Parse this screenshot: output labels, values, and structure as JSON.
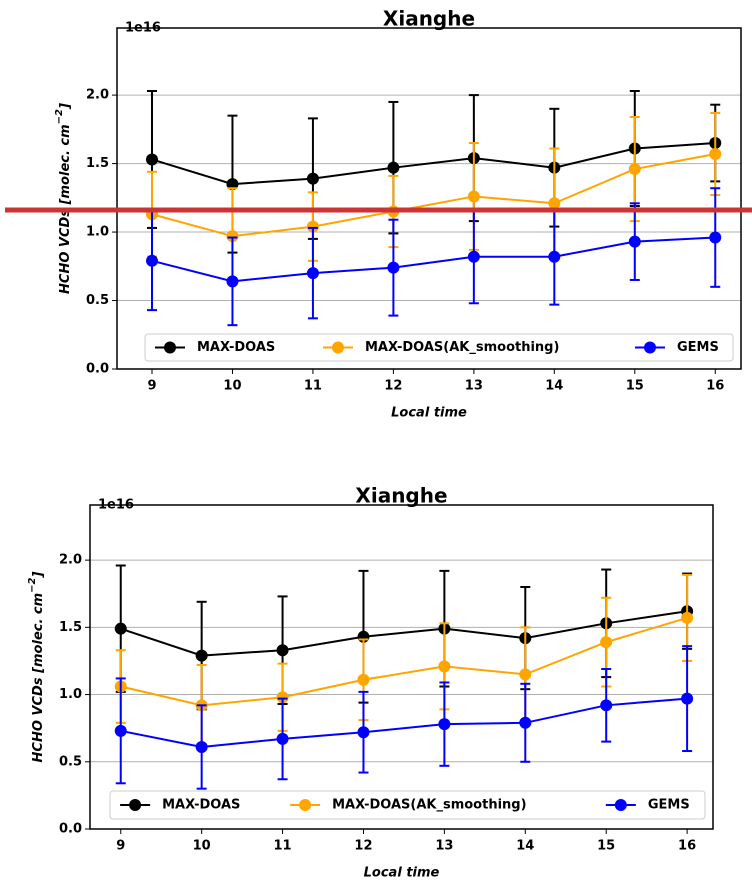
{
  "chart_data": [
    {
      "type": "line",
      "title": "Xianghe",
      "offset_text": "1e16",
      "xlabel": "Local time",
      "ylabel": {
        "text": "HCHO VCDs [molec. cm",
        "superscript": "−2",
        "after": "]"
      },
      "x": [
        9,
        10,
        11,
        12,
        13,
        14,
        15,
        16
      ],
      "xlim": [
        8.565,
        16.32
      ],
      "xticks": [
        9,
        10,
        11,
        12,
        13,
        14,
        15,
        16
      ],
      "ylim": [
        0,
        2.49
      ],
      "yticks": [
        {
          "value": 0,
          "label": "0.0"
        },
        0.5,
        {
          "value": 1,
          "label": "1.0"
        },
        1.5,
        {
          "value": 2,
          "label": "2.0"
        }
      ],
      "grid": true,
      "legend": "lower center",
      "series": [
        {
          "name": "MAX-DOAS",
          "color": "#000000",
          "values": [
            1.53,
            1.35,
            1.39,
            1.47,
            1.54,
            1.47,
            1.61,
            1.65
          ],
          "errors": [
            0.5,
            0.5,
            0.44,
            0.48,
            0.46,
            0.43,
            0.42,
            0.28
          ]
        },
        {
          "name": "MAX-DOAS(AK_smoothing)",
          "color": "#ffa500",
          "values": [
            1.13,
            0.97,
            1.04,
            1.15,
            1.26,
            1.21,
            1.46,
            1.57
          ],
          "errors": [
            0.31,
            0.35,
            0.25,
            0.26,
            0.39,
            0.4,
            0.38,
            0.3
          ]
        },
        {
          "name": "GEMS",
          "color": "#0000ff",
          "values": [
            0.79,
            0.64,
            0.7,
            0.74,
            0.82,
            0.82,
            0.93,
            0.96
          ],
          "errors": [
            0.36,
            0.32,
            0.33,
            0.35,
            0.34,
            0.35,
            0.28,
            0.36
          ]
        }
      ]
    },
    {
      "type": "line",
      "title": "Xianghe",
      "offset_text": "1e16",
      "xlabel": "Local time",
      "ylabel": {
        "text": "HCHO VCDs [molec. cm",
        "superscript": "−2",
        "after": "]"
      },
      "x": [
        9,
        10,
        11,
        12,
        13,
        14,
        15,
        16
      ],
      "xlim": [
        8.62,
        16.32
      ],
      "xticks": [
        9,
        10,
        11,
        12,
        13,
        14,
        15,
        16
      ],
      "ylim": [
        0,
        2.41
      ],
      "yticks": [
        {
          "value": 0,
          "label": "0.0"
        },
        0.5,
        {
          "value": 1,
          "label": "1.0"
        },
        1.5,
        {
          "value": 2,
          "label": "2.0"
        }
      ],
      "grid": true,
      "legend": "lower center",
      "series": [
        {
          "name": "MAX-DOAS",
          "color": "#000000",
          "values": [
            1.49,
            1.29,
            1.33,
            1.43,
            1.49,
            1.42,
            1.53,
            1.62
          ],
          "errors": [
            0.47,
            0.4,
            0.4,
            0.49,
            0.43,
            0.38,
            0.4,
            0.28
          ]
        },
        {
          "name": "MAX-DOAS(AK_smoothing)",
          "color": "#ffa500",
          "values": [
            1.06,
            0.92,
            0.98,
            1.11,
            1.21,
            1.15,
            1.39,
            1.57
          ],
          "errors": [
            0.27,
            0.3,
            0.25,
            0.3,
            0.32,
            0.35,
            0.33,
            0.32
          ]
        },
        {
          "name": "GEMS",
          "color": "#0000ff",
          "values": [
            0.73,
            0.61,
            0.67,
            0.72,
            0.78,
            0.79,
            0.92,
            0.97
          ],
          "errors": [
            0.39,
            0.31,
            0.3,
            0.3,
            0.31,
            0.29,
            0.27,
            0.39
          ]
        }
      ]
    }
  ]
}
